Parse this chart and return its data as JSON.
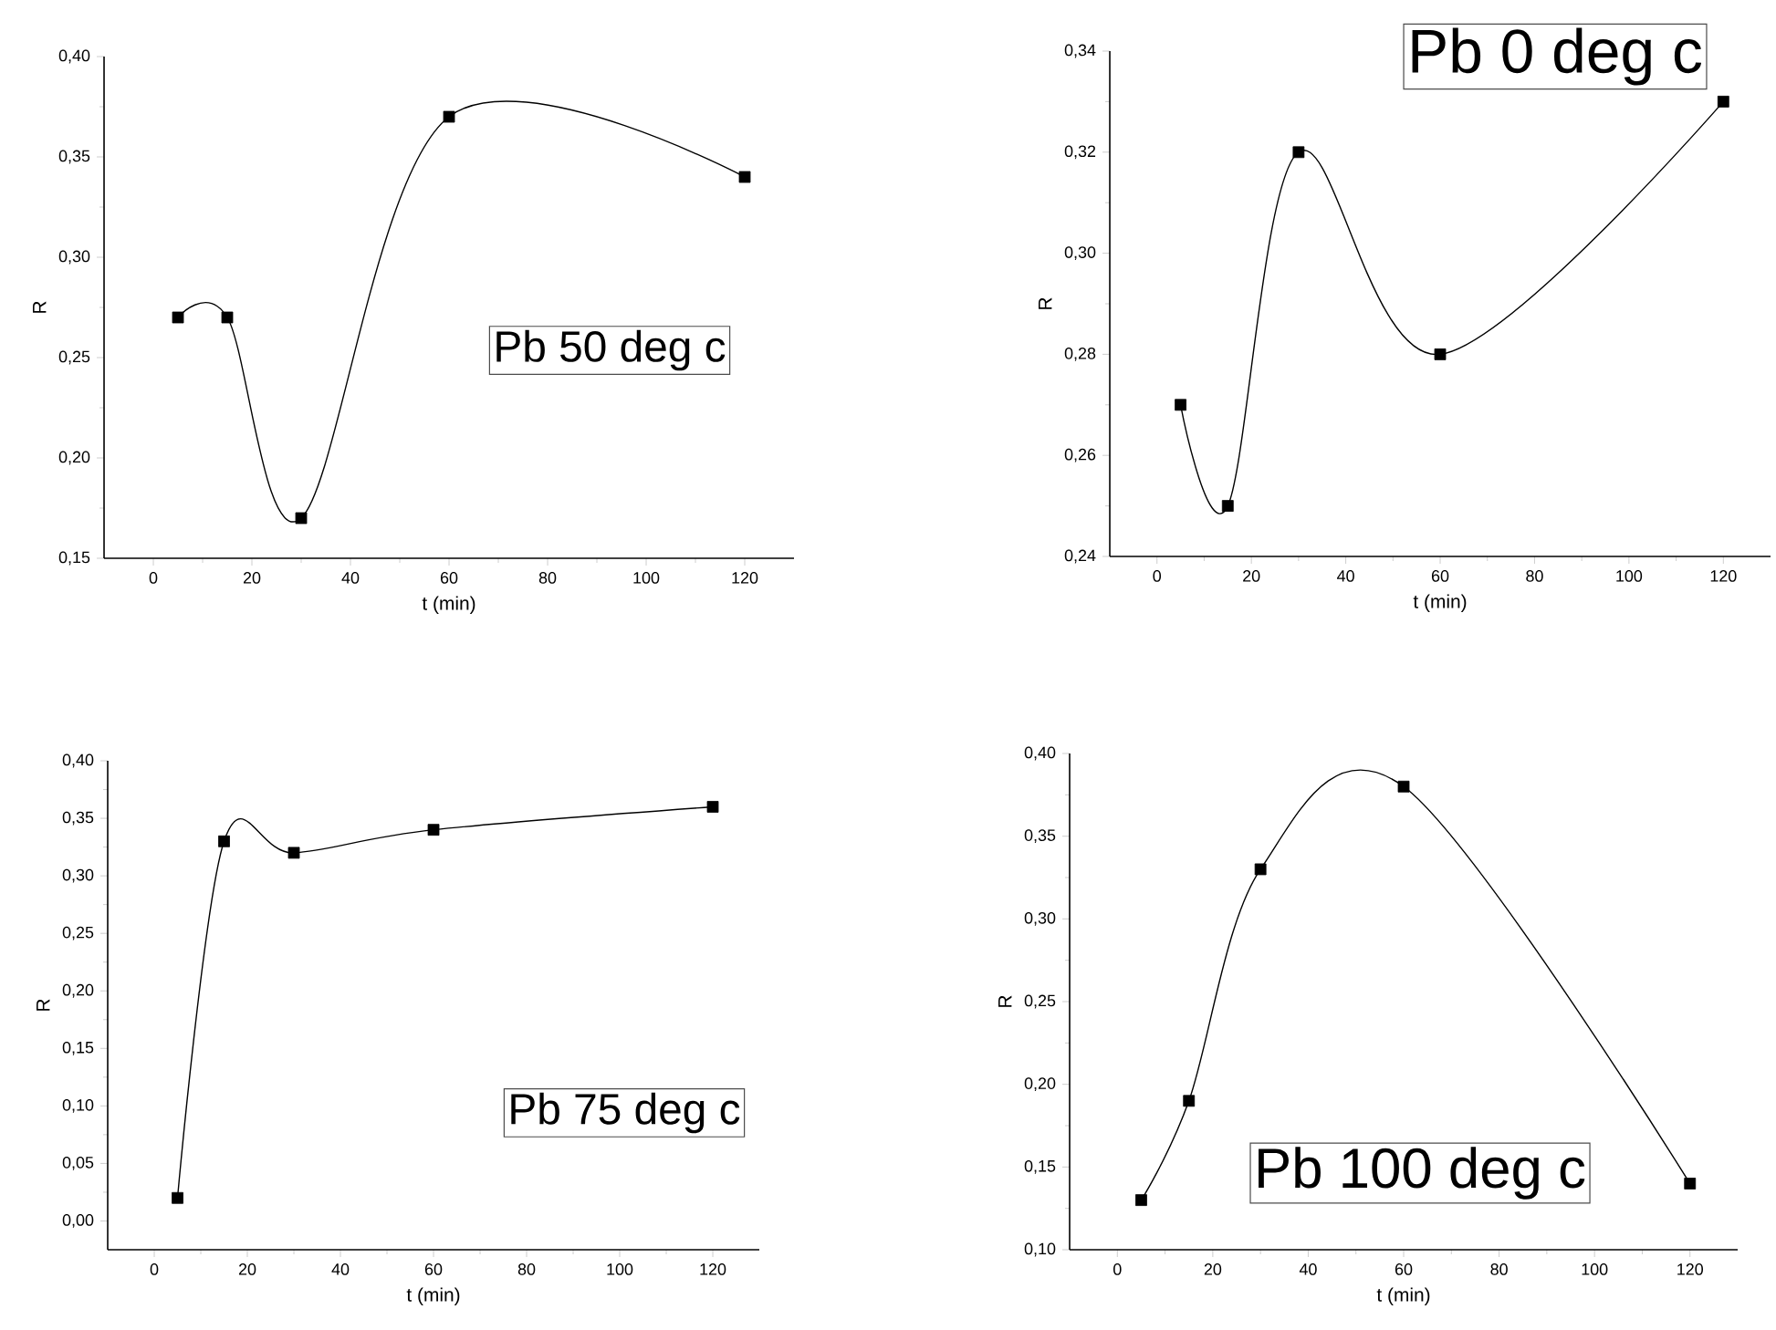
{
  "chart_data": [
    {
      "type": "line",
      "x": [
        5,
        15,
        30,
        60,
        120
      ],
      "xlabel": "t (min)",
      "ylabel": "R",
      "xlim": [
        -10,
        130
      ],
      "xticks": [
        0,
        20,
        40,
        60,
        80,
        100,
        120
      ],
      "ylim": [
        0.15,
        0.4
      ],
      "yticks": [
        {
          "value": 0.15,
          "label": "0,15"
        },
        {
          "value": 0.2,
          "label": "0,20"
        },
        {
          "value": 0.25,
          "label": "0,25"
        },
        {
          "value": 0.3,
          "label": "0,30"
        },
        {
          "value": 0.35,
          "label": "0,35"
        },
        {
          "value": 0.4,
          "label": "0,40"
        }
      ],
      "marker": "square",
      "annotations": [
        "Pb 50 deg c"
      ],
      "series": [
        {
          "color": "#000000",
          "values": [
            0.27,
            0.27,
            0.17,
            0.37,
            0.34
          ]
        }
      ]
    },
    {
      "type": "line",
      "x": [
        5,
        15,
        30,
        60,
        120
      ],
      "xlabel": "t (min)",
      "ylabel": "R",
      "xlim": [
        -10,
        130
      ],
      "xticks": [
        0,
        20,
        40,
        60,
        80,
        100,
        120
      ],
      "ylim": [
        0.24,
        0.34
      ],
      "yticks": [
        {
          "value": 0.24,
          "label": "0,24"
        },
        {
          "value": 0.26,
          "label": "0,26"
        },
        {
          "value": 0.28,
          "label": "0,28"
        },
        {
          "value": 0.3,
          "label": "0,30"
        },
        {
          "value": 0.32,
          "label": "0,32"
        },
        {
          "value": 0.34,
          "label": "0,34"
        }
      ],
      "marker": "square",
      "annotations": [
        "Pb 0 deg c"
      ],
      "series": [
        {
          "color": "#000000",
          "values": [
            0.27,
            0.25,
            0.32,
            0.28,
            0.33
          ]
        }
      ]
    },
    {
      "type": "line",
      "x": [
        5,
        15,
        30,
        60,
        120
      ],
      "xlabel": "t (min)",
      "ylabel": "R",
      "xlim": [
        -10,
        130
      ],
      "xticks": [
        0,
        20,
        40,
        60,
        80,
        100,
        120
      ],
      "ylim": [
        -0.025,
        0.4
      ],
      "yticks": [
        {
          "value": 0.0,
          "label": "0,00"
        },
        {
          "value": 0.05,
          "label": "0,05"
        },
        {
          "value": 0.1,
          "label": "0,10"
        },
        {
          "value": 0.15,
          "label": "0,15"
        },
        {
          "value": 0.2,
          "label": "0,20"
        },
        {
          "value": 0.25,
          "label": "0,25"
        },
        {
          "value": 0.3,
          "label": "0,30"
        },
        {
          "value": 0.35,
          "label": "0,35"
        },
        {
          "value": 0.4,
          "label": "0,40"
        }
      ],
      "marker": "square",
      "annotations": [
        "Pb 75 deg c"
      ],
      "series": [
        {
          "color": "#000000",
          "values": [
            0.02,
            0.33,
            0.32,
            0.34,
            0.36
          ]
        }
      ]
    },
    {
      "type": "line",
      "x": [
        5,
        15,
        30,
        60,
        120
      ],
      "xlabel": "t (min)",
      "ylabel": "R",
      "xlim": [
        -10,
        130
      ],
      "xticks": [
        0,
        20,
        40,
        60,
        80,
        100,
        120
      ],
      "ylim": [
        0.1,
        0.4
      ],
      "yticks": [
        {
          "value": 0.1,
          "label": "0,10"
        },
        {
          "value": 0.15,
          "label": "0,15"
        },
        {
          "value": 0.2,
          "label": "0,20"
        },
        {
          "value": 0.25,
          "label": "0,25"
        },
        {
          "value": 0.3,
          "label": "0,30"
        },
        {
          "value": 0.35,
          "label": "0,35"
        },
        {
          "value": 0.4,
          "label": "0,40"
        }
      ],
      "marker": "square",
      "annotations": [
        "Pb 100 deg c"
      ],
      "series": [
        {
          "color": "#000000",
          "values": [
            0.13,
            0.19,
            0.33,
            0.38,
            0.14
          ]
        }
      ]
    }
  ]
}
